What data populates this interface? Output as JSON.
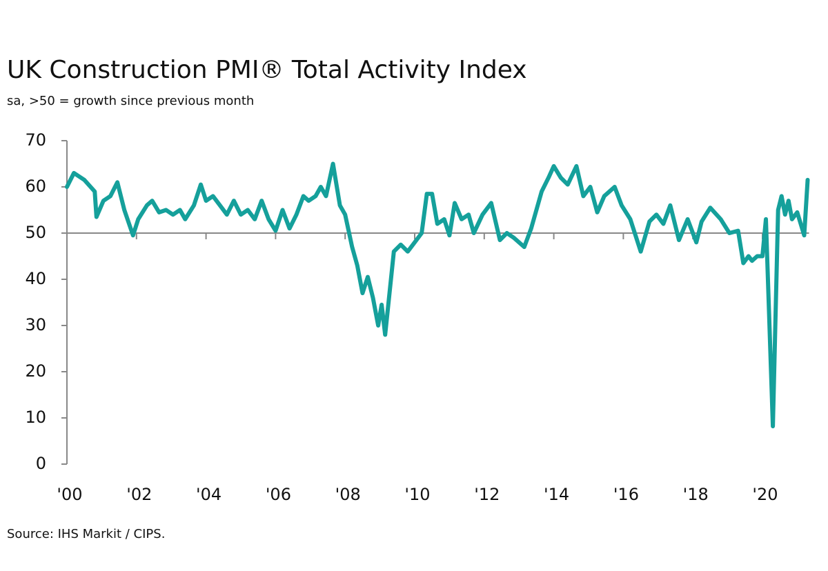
{
  "chart_data": {
    "type": "line",
    "title": "UK Construction PMI® Total Activity Index",
    "subtitle": "sa, >50 = growth since previous month",
    "source": "Source: IHS Markit / CIPS.",
    "x": [
      2000.0,
      2000.2,
      2000.5,
      2000.8,
      2000.85,
      2001.05,
      2001.25,
      2001.45,
      2001.65,
      2001.9,
      2002.05,
      2002.3,
      2002.45,
      2002.65,
      2002.85,
      2003.05,
      2003.25,
      2003.4,
      2003.65,
      2003.85,
      2004.0,
      2004.2,
      2004.4,
      2004.6,
      2004.8,
      2005.0,
      2005.2,
      2005.4,
      2005.6,
      2005.8,
      2006.0,
      2006.2,
      2006.4,
      2006.6,
      2006.8,
      2006.95,
      2007.15,
      2007.3,
      2007.45,
      2007.65,
      2007.85,
      2008.0,
      2008.2,
      2008.35,
      2008.5,
      2008.65,
      2008.8,
      2008.95,
      2009.05,
      2009.15,
      2009.4,
      2009.6,
      2009.8,
      2010.0,
      2010.2,
      2010.35,
      2010.5,
      2010.65,
      2010.85,
      2011.0,
      2011.15,
      2011.35,
      2011.55,
      2011.7,
      2011.95,
      2012.2,
      2012.45,
      2012.65,
      2012.85,
      2013.15,
      2013.35,
      2013.65,
      2013.85,
      2014.0,
      2014.2,
      2014.4,
      2014.65,
      2014.85,
      2015.05,
      2015.25,
      2015.45,
      2015.75,
      2015.95,
      2016.2,
      2016.5,
      2016.75,
      2016.95,
      2017.15,
      2017.35,
      2017.6,
      2017.85,
      2018.1,
      2018.25,
      2018.5,
      2018.8,
      2019.05,
      2019.3,
      2019.45,
      2019.6,
      2019.7,
      2019.85,
      2020.0,
      2020.1,
      2020.3,
      2020.45,
      2020.55,
      2020.65,
      2020.75,
      2020.85,
      2021.0,
      2021.2,
      2021.3
    ],
    "series": [
      {
        "name": "Total Activity Index",
        "color": "#15a09b",
        "values": [
          60,
          63,
          61.5,
          59,
          53.5,
          57,
          58,
          61,
          55,
          49.5,
          53,
          56,
          57,
          54.5,
          55,
          54,
          55,
          53,
          56,
          60.5,
          57,
          58,
          56,
          54,
          57,
          54,
          55,
          53,
          57,
          53,
          50.5,
          55,
          51,
          54,
          58,
          57,
          58,
          60,
          58,
          65,
          56,
          54,
          47,
          43,
          37,
          40.5,
          36,
          30,
          34.5,
          28,
          46,
          47.5,
          46,
          48,
          50,
          58.5,
          58.5,
          52,
          53,
          49.5,
          56.5,
          53,
          54,
          50,
          54,
          56.5,
          48.5,
          50,
          49,
          47,
          51,
          59,
          62,
          64.5,
          62,
          60.5,
          64.5,
          58,
          60,
          54.5,
          58,
          60,
          56,
          53,
          46,
          52.5,
          54,
          52,
          56,
          48.5,
          53,
          48,
          52.5,
          55.5,
          53,
          50,
          50.5,
          43.5,
          45,
          44,
          45,
          45,
          53,
          8.2,
          55,
          58,
          54,
          57,
          53,
          54.5,
          49.5,
          61.5
        ]
      }
    ],
    "reference_line": 50,
    "xlim": [
      2000,
      2021.3
    ],
    "xticks": [
      {
        "value": 2000,
        "label": "'00"
      },
      {
        "value": 2002,
        "label": "'02"
      },
      {
        "value": 2004,
        "label": "'04"
      },
      {
        "value": 2006,
        "label": "'06"
      },
      {
        "value": 2008,
        "label": "'08"
      },
      {
        "value": 2010,
        "label": "'10"
      },
      {
        "value": 2012,
        "label": "'12"
      },
      {
        "value": 2014,
        "label": "'14"
      },
      {
        "value": 2016,
        "label": "'16"
      },
      {
        "value": 2018,
        "label": "'18"
      },
      {
        "value": 2020,
        "label": "'20"
      }
    ],
    "ylim": [
      0,
      70
    ],
    "yticks": [
      0,
      10,
      20,
      30,
      40,
      50,
      60,
      70
    ]
  }
}
